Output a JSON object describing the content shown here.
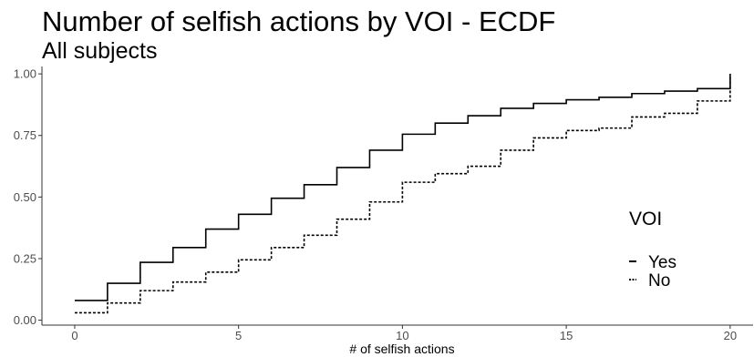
{
  "chart_data": {
    "type": "line",
    "step": true,
    "title": "Number of selfish actions by VOI - ECDF",
    "subtitle": "All subjects",
    "xlabel": "# of selfish actions",
    "ylabel": "",
    "xlim": [
      -1,
      20.7
    ],
    "ylim": [
      -0.02,
      1.03
    ],
    "x_ticks": [
      0,
      5,
      10,
      15,
      20
    ],
    "x_tick_labels": [
      "0",
      "5",
      "10",
      "15",
      "20"
    ],
    "y_ticks": [
      0,
      0.25,
      0.5,
      0.75,
      1.0
    ],
    "y_tick_labels": [
      "0.00",
      "0.25",
      "0.50",
      "0.75",
      "1.00"
    ],
    "grid": false,
    "legend": {
      "title": "VOI",
      "position": "right"
    },
    "x": [
      0,
      1,
      2,
      3,
      4,
      5,
      6,
      7,
      8,
      9,
      10,
      11,
      12,
      13,
      14,
      15,
      16,
      17,
      18,
      19,
      20
    ],
    "series": [
      {
        "name": "Yes",
        "linetype": "solid",
        "values": [
          0.08,
          0.15,
          0.235,
          0.295,
          0.37,
          0.43,
          0.495,
          0.55,
          0.62,
          0.69,
          0.755,
          0.8,
          0.83,
          0.86,
          0.88,
          0.895,
          0.905,
          0.92,
          0.93,
          0.94,
          1.0
        ]
      },
      {
        "name": "No",
        "linetype": "dashed",
        "values": [
          0.03,
          0.07,
          0.12,
          0.155,
          0.195,
          0.245,
          0.295,
          0.345,
          0.41,
          0.48,
          0.56,
          0.595,
          0.625,
          0.69,
          0.74,
          0.77,
          0.78,
          0.825,
          0.84,
          0.89,
          1.0
        ]
      }
    ]
  }
}
